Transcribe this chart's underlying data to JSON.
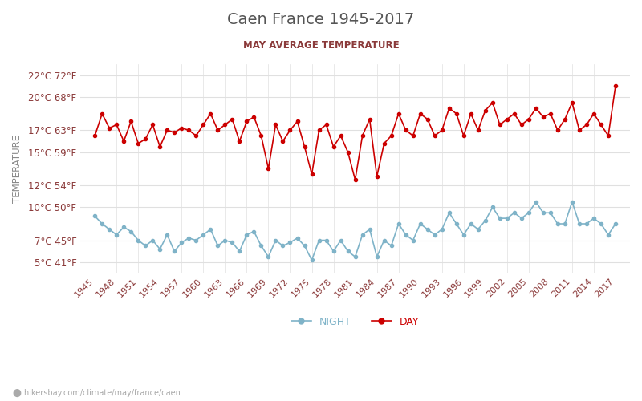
{
  "title": "Caen France 1945-2017",
  "subtitle": "MAY AVERAGE TEMPERATURE",
  "ylabel": "TEMPERATURE",
  "watermark": "hikersbay.com/climate/may/france/caen",
  "yticks_celsius": [
    22,
    20,
    17,
    15,
    12,
    10,
    7,
    5
  ],
  "yticks_fahrenheit": [
    72,
    68,
    63,
    59,
    54,
    50,
    45,
    41
  ],
  "years": [
    1945,
    1946,
    1947,
    1948,
    1949,
    1950,
    1951,
    1952,
    1953,
    1954,
    1955,
    1956,
    1957,
    1958,
    1959,
    1960,
    1961,
    1962,
    1963,
    1964,
    1965,
    1966,
    1967,
    1968,
    1969,
    1970,
    1971,
    1972,
    1973,
    1974,
    1975,
    1976,
    1977,
    1978,
    1979,
    1980,
    1981,
    1982,
    1983,
    1984,
    1985,
    1986,
    1987,
    1988,
    1989,
    1990,
    1991,
    1992,
    1993,
    1994,
    1995,
    1996,
    1997,
    1998,
    1999,
    2000,
    2001,
    2002,
    2003,
    2004,
    2005,
    2006,
    2007,
    2008,
    2009,
    2010,
    2011,
    2012,
    2013,
    2014,
    2015,
    2016,
    2017
  ],
  "day_temps": [
    16.5,
    18.5,
    17.2,
    17.5,
    16.0,
    17.8,
    15.8,
    16.2,
    17.5,
    15.5,
    17.0,
    16.8,
    17.2,
    17.0,
    16.5,
    17.5,
    18.5,
    17.0,
    17.5,
    18.0,
    16.0,
    17.8,
    18.2,
    16.5,
    13.5,
    17.5,
    16.0,
    17.0,
    17.8,
    15.5,
    13.0,
    17.0,
    17.5,
    15.5,
    16.5,
    15.0,
    12.5,
    16.5,
    18.0,
    12.8,
    15.8,
    16.5,
    18.5,
    17.0,
    16.5,
    18.5,
    18.0,
    16.5,
    17.0,
    19.0,
    18.5,
    16.5,
    18.5,
    17.0,
    18.8,
    19.5,
    17.5,
    18.0,
    18.5,
    17.5,
    18.0,
    19.0,
    18.2,
    18.5,
    17.0,
    18.0,
    19.5,
    17.0,
    17.5,
    18.5,
    17.5,
    16.5,
    21.0
  ],
  "night_temps": [
    9.2,
    8.5,
    8.0,
    7.5,
    8.2,
    7.8,
    7.0,
    6.5,
    7.0,
    6.2,
    7.5,
    6.0,
    6.8,
    7.2,
    7.0,
    7.5,
    8.0,
    6.5,
    7.0,
    6.8,
    6.0,
    7.5,
    7.8,
    6.5,
    5.5,
    7.0,
    6.5,
    6.8,
    7.2,
    6.5,
    5.2,
    7.0,
    7.0,
    6.0,
    7.0,
    6.0,
    5.5,
    7.5,
    8.0,
    5.5,
    7.0,
    6.5,
    8.5,
    7.5,
    7.0,
    8.5,
    8.0,
    7.5,
    8.0,
    9.5,
    8.5,
    7.5,
    8.5,
    8.0,
    8.8,
    10.0,
    9.0,
    9.0,
    9.5,
    9.0,
    9.5,
    10.5,
    9.5,
    9.5,
    8.5,
    8.5,
    10.5,
    8.5,
    8.5,
    9.0,
    8.5,
    7.5,
    8.5
  ],
  "day_color": "#cc0000",
  "night_color": "#7fb3c8",
  "title_color": "#555555",
  "subtitle_color": "#8b3a3a",
  "ylabel_color": "#888888",
  "tick_label_color": "#8b3a3a",
  "grid_color": "#e0e0e0",
  "background_color": "#ffffff",
  "legend_night": "NIGHT",
  "legend_day": "DAY",
  "watermark_color": "#aaaaaa",
  "watermark_icon_color": "#e07020"
}
